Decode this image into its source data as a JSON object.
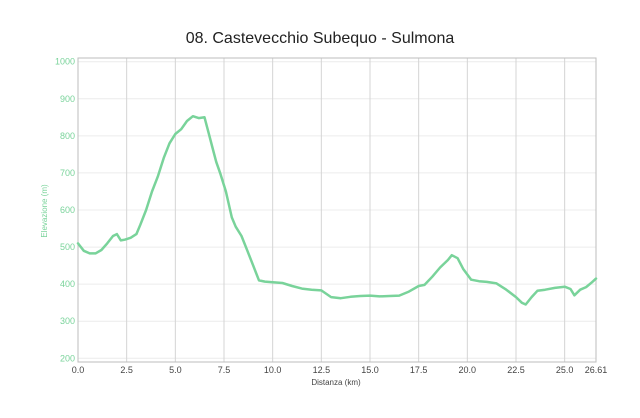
{
  "chart_data": {
    "type": "area",
    "title": "08. Castevecchio Subequo - Sulmona",
    "xlabel": "Distanza (km)",
    "ylabel": "Elevazione (m)",
    "xlim": [
      0,
      26.61
    ],
    "ylim": [
      190,
      1010
    ],
    "y_ticks": [
      200,
      300,
      400,
      500,
      600,
      700,
      800,
      900,
      1000
    ],
    "x_ticks": [
      0.0,
      2.5,
      5.0,
      7.5,
      10.0,
      12.5,
      15.0,
      17.5,
      20.0,
      22.5,
      25.0,
      26.61
    ],
    "x_tick_labels": [
      "0.0",
      "2.5",
      "5.0",
      "7.5",
      "10.0",
      "12.5",
      "15.0",
      "17.5",
      "20.0",
      "22.5",
      "25.0",
      "26.61"
    ],
    "series": [
      {
        "color": "#79d39a",
        "x": [
          0.0,
          0.3,
          0.6,
          0.9,
          1.2,
          1.5,
          1.8,
          2.0,
          2.2,
          2.4,
          2.7,
          3.0,
          3.2,
          3.5,
          3.8,
          4.1,
          4.4,
          4.7,
          5.0,
          5.3,
          5.6,
          5.9,
          6.2,
          6.5,
          6.7,
          6.9,
          7.1,
          7.3,
          7.6,
          7.9,
          8.1,
          8.4,
          8.7,
          9.0,
          9.3,
          9.6,
          10.0,
          10.5,
          11.0,
          11.5,
          12.0,
          12.5,
          13.0,
          13.5,
          14.0,
          14.5,
          15.0,
          15.5,
          16.0,
          16.5,
          17.0,
          17.5,
          17.8,
          18.2,
          18.6,
          19.0,
          19.2,
          19.5,
          19.8,
          20.2,
          20.6,
          21.0,
          21.5,
          22.0,
          22.5,
          22.8,
          23.0,
          23.3,
          23.6,
          24.0,
          24.5,
          25.0,
          25.3,
          25.5,
          25.8,
          26.1,
          26.4,
          26.61
        ],
        "y": [
          510,
          490,
          483,
          483,
          492,
          510,
          530,
          535,
          518,
          520,
          525,
          535,
          560,
          600,
          650,
          690,
          740,
          780,
          805,
          818,
          840,
          853,
          848,
          850,
          810,
          770,
          730,
          700,
          650,
          580,
          555,
          530,
          490,
          450,
          410,
          407,
          405,
          403,
          395,
          388,
          385,
          383,
          365,
          362,
          366,
          368,
          369,
          367,
          368,
          369,
          380,
          395,
          398,
          420,
          445,
          465,
          478,
          470,
          440,
          412,
          408,
          406,
          402,
          385,
          365,
          350,
          345,
          365,
          382,
          385,
          390,
          393,
          387,
          370,
          385,
          392,
          405,
          415
        ]
      }
    ]
  }
}
